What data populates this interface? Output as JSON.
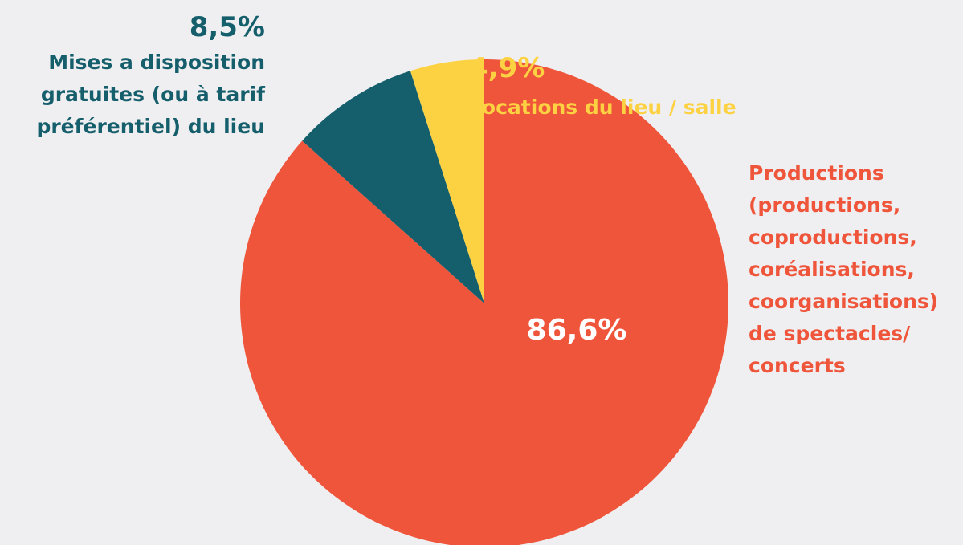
{
  "chart_data": {
    "type": "pie",
    "categories": [
      "Productions\n(productions,\ncoproductions,\ncoréalisations,\ncoorganisations)\nde spectacles/\nconcerts",
      "Mises a disposition\ngratuites (ou à tarif\npréférentiel) du lieu",
      "Locations du lieu / salle"
    ],
    "values": [
      86.6,
      8.5,
      4.9
    ],
    "value_labels": [
      "86,6%",
      "8,5%",
      "4,9%"
    ],
    "colors": [
      "#ef553a",
      "#155e6b",
      "#fdd242"
    ]
  }
}
